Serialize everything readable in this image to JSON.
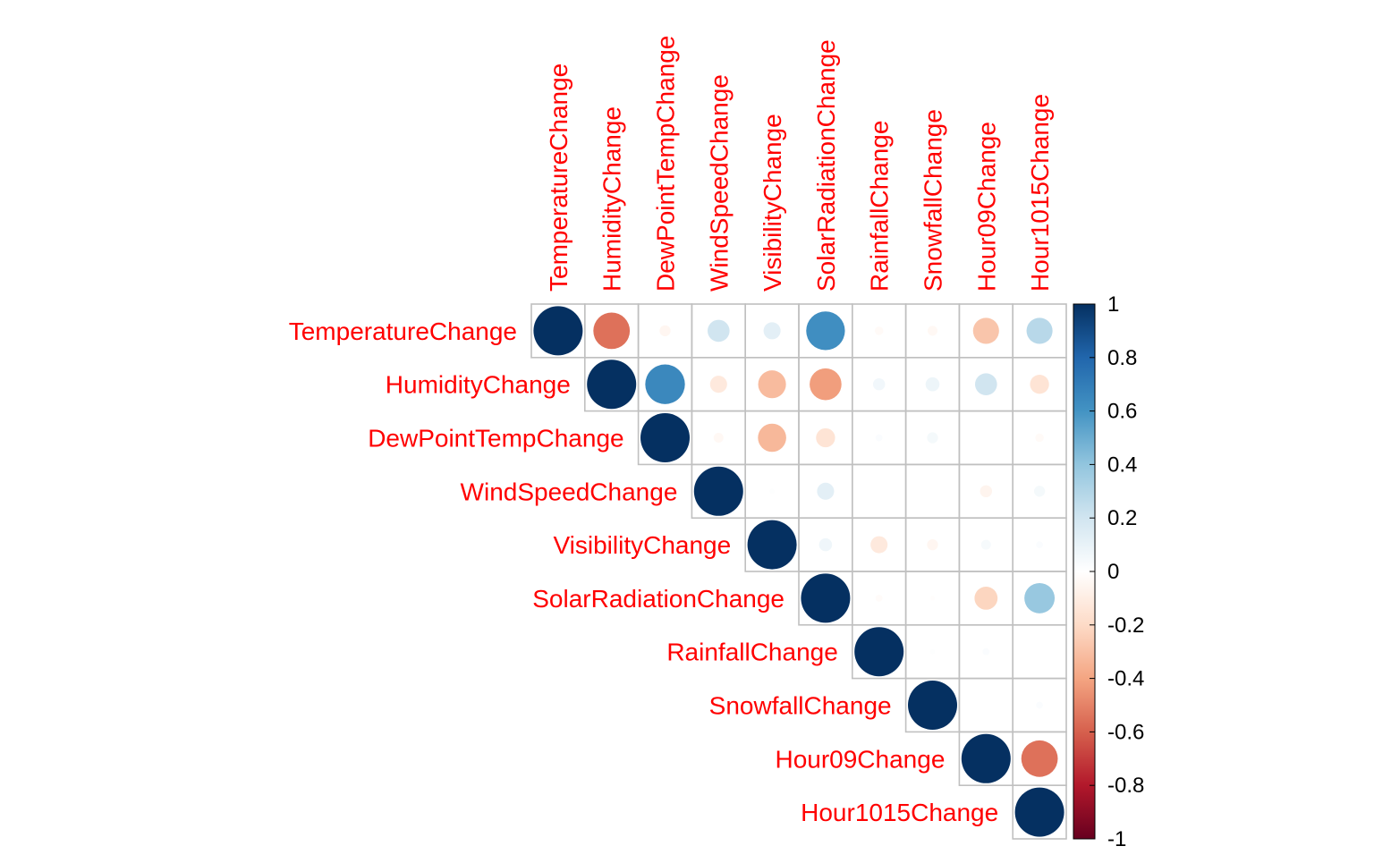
{
  "chart_data": {
    "type": "heatmap",
    "subtype": "correlation-matrix-upper-triangle-circles",
    "variables": [
      "TemperatureChange",
      "HumidityChange",
      "DewPointTempChange",
      "WindSpeedChange",
      "VisibilityChange",
      "SolarRadiationChange",
      "RainfallChange",
      "SnowfallChange",
      "Hour09Change",
      "Hour1015Change"
    ],
    "matrix": [
      [
        1.0,
        -0.55,
        -0.05,
        0.2,
        0.12,
        0.62,
        -0.03,
        -0.04,
        -0.28,
        0.28
      ],
      [
        null,
        1.0,
        0.65,
        -0.12,
        -0.32,
        -0.42,
        0.06,
        0.08,
        0.2,
        -0.15
      ],
      [
        null,
        null,
        1.0,
        -0.04,
        -0.33,
        -0.15,
        0.02,
        0.05,
        0.0,
        -0.03
      ],
      [
        null,
        null,
        null,
        1.0,
        0.01,
        0.12,
        0.0,
        0.0,
        -0.06,
        0.05
      ],
      [
        null,
        null,
        null,
        null,
        1.0,
        0.07,
        -0.12,
        -0.05,
        0.04,
        0.02
      ],
      [
        null,
        null,
        null,
        null,
        null,
        1.0,
        -0.02,
        -0.01,
        -0.22,
        0.38
      ],
      [
        null,
        null,
        null,
        null,
        null,
        null,
        1.0,
        0.01,
        0.02,
        0.0
      ],
      [
        null,
        null,
        null,
        null,
        null,
        null,
        null,
        1.0,
        0.0,
        0.02
      ],
      [
        null,
        null,
        null,
        null,
        null,
        null,
        null,
        null,
        1.0,
        -0.55
      ],
      [
        null,
        null,
        null,
        null,
        null,
        null,
        null,
        null,
        null,
        1.0
      ]
    ],
    "color_scale": {
      "range": [
        -1,
        1
      ],
      "ticks": [
        "1",
        "0.8",
        "0.6",
        "0.4",
        "0.2",
        "0",
        "-0.2",
        "-0.4",
        "-0.6",
        "-0.8",
        "-1"
      ],
      "colors": [
        "#67001F",
        "#B2182B",
        "#D6604D",
        "#F4A582",
        "#FDDBC7",
        "#FFFFFF",
        "#D1E5F0",
        "#92C5DE",
        "#4393C3",
        "#2166AC",
        "#053061"
      ]
    },
    "label_color": "#FF0000",
    "grid_color": "#C0C0C0",
    "legend_placement": "right"
  }
}
